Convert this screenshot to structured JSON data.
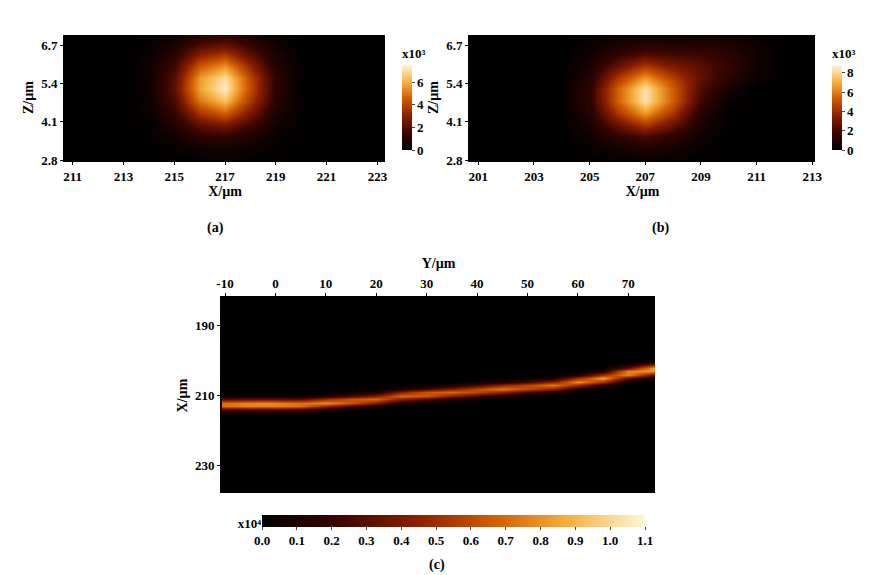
{
  "chart_data": [
    {
      "type": "heatmap",
      "label": "(a)",
      "x_label": "X/µm",
      "y_label": "Z/µm",
      "xlim": [
        210.7,
        223.3
      ],
      "xticks": [
        211,
        213,
        215,
        217,
        219,
        221,
        223
      ],
      "ylim": [
        2.8,
        7.05
      ],
      "yticks": [
        2.8,
        4.1,
        5.4,
        6.7
      ],
      "x": [
        211,
        212,
        213,
        214,
        215,
        216,
        217,
        218,
        219,
        220,
        221,
        222,
        223
      ],
      "y": [
        2.8,
        3.2,
        3.6,
        4.0,
        4.4,
        4.8,
        5.2,
        5.6,
        6.0,
        6.4,
        6.8,
        7.2
      ],
      "z": [
        [
          0,
          0,
          0,
          0,
          0.1,
          0.1,
          0.2,
          0.1,
          0,
          0,
          0,
          0,
          0
        ],
        [
          0,
          0,
          0,
          0,
          0.2,
          0.4,
          0.5,
          0.3,
          0.1,
          0,
          0,
          0,
          0
        ],
        [
          0,
          0,
          0,
          0.1,
          0.4,
          1.1,
          1.3,
          0.8,
          0.2,
          0,
          0,
          0,
          0
        ],
        [
          0,
          0,
          0,
          0.1,
          0.8,
          2.2,
          2.7,
          1.6,
          0.4,
          0.1,
          0,
          0,
          0
        ],
        [
          0,
          0,
          0,
          0.2,
          1.3,
          3.6,
          4.6,
          2.7,
          0.7,
          0.1,
          0,
          0,
          0
        ],
        [
          0,
          0,
          0,
          0.3,
          1.8,
          5.0,
          6.3,
          3.7,
          1.0,
          0.1,
          0,
          0,
          0
        ],
        [
          0,
          0,
          0,
          0.3,
          2.1,
          5.8,
          7.3,
          4.2,
          1.1,
          0.1,
          0,
          0,
          0
        ],
        [
          0,
          0,
          0,
          0.3,
          2.0,
          5.6,
          7.0,
          4.1,
          1.1,
          0.1,
          0,
          0,
          0
        ],
        [
          0,
          0,
          0,
          0.3,
          1.6,
          4.4,
          5.5,
          3.2,
          0.8,
          0.1,
          0,
          0,
          0
        ],
        [
          0,
          0,
          0,
          0.2,
          1.0,
          2.9,
          3.6,
          2.1,
          0.6,
          0.1,
          0,
          0,
          0
        ],
        [
          0,
          0,
          0,
          0.1,
          0.5,
          1.5,
          1.9,
          1.1,
          0.3,
          0,
          0,
          0,
          0
        ],
        [
          0,
          0,
          0,
          0,
          0.3,
          0.7,
          0.9,
          0.5,
          0.1,
          0,
          0,
          0,
          0
        ]
      ],
      "colorbar": {
        "range": [
          0,
          7.5
        ],
        "ticks": [
          0,
          2,
          4,
          6
        ],
        "label": "x10³"
      }
    },
    {
      "type": "heatmap",
      "label": "(b)",
      "x_label": "X/µm",
      "y_label": "Z/µm",
      "xlim": [
        200.7,
        213.1
      ],
      "xticks": [
        201,
        203,
        205,
        207,
        209,
        211,
        213
      ],
      "ylim": [
        2.8,
        7.05
      ],
      "yticks": [
        2.8,
        4.1,
        5.4,
        6.7
      ],
      "x": [
        201,
        202,
        203,
        204,
        205,
        206,
        207,
        208,
        209,
        210,
        211,
        212,
        213
      ],
      "y": [
        2.8,
        3.2,
        3.6,
        4.0,
        4.4,
        4.8,
        5.2,
        5.6,
        6.0,
        6.4,
        6.8,
        7.2
      ],
      "z": [
        [
          0,
          0,
          0,
          0,
          0.1,
          0.2,
          0.3,
          0.2,
          0.1,
          0,
          0,
          0,
          0
        ],
        [
          0,
          0,
          0,
          0,
          0.2,
          0.6,
          0.9,
          0.6,
          0.2,
          0,
          0,
          0,
          0
        ],
        [
          0,
          0,
          0,
          0,
          0.4,
          1.4,
          2.2,
          1.4,
          0.4,
          0,
          0,
          0,
          0
        ],
        [
          0,
          0,
          0,
          0.1,
          0.7,
          2.7,
          4.3,
          2.7,
          0.7,
          0.1,
          0,
          0,
          0
        ],
        [
          0,
          0,
          0,
          0.1,
          1.1,
          4.2,
          6.6,
          4.2,
          1.1,
          0.1,
          0,
          0,
          0
        ],
        [
          0,
          0,
          0,
          0.1,
          1.4,
          5.3,
          8.3,
          5.3,
          1.8,
          0.1,
          0,
          0,
          0
        ],
        [
          0,
          0,
          0,
          0.1,
          1.4,
          5.3,
          8.3,
          5.3,
          2.2,
          0.6,
          0,
          0,
          0
        ],
        [
          0,
          0,
          0,
          0.1,
          1.1,
          4.2,
          6.6,
          4.5,
          2.6,
          1.2,
          0.3,
          0,
          0
        ],
        [
          0,
          0,
          0,
          0.1,
          0.7,
          2.7,
          4.3,
          3.2,
          2.4,
          1.5,
          0.5,
          0,
          0
        ],
        [
          0,
          0,
          0,
          0,
          0.4,
          1.4,
          2.2,
          1.9,
          1.8,
          1.2,
          0.5,
          0,
          0
        ],
        [
          0,
          0,
          0,
          0,
          0.2,
          0.6,
          0.9,
          0.8,
          0.9,
          0.7,
          0.3,
          0,
          0
        ],
        [
          0,
          0,
          0,
          0,
          0.1,
          0.2,
          0.3,
          0.3,
          0.3,
          0.2,
          0.1,
          0,
          0
        ]
      ],
      "colorbar": {
        "range": [
          0,
          8.8
        ],
        "ticks": [
          0,
          2,
          4,
          6,
          8
        ],
        "label": "x10³"
      }
    },
    {
      "type": "heatmap",
      "label": "(c)",
      "x_label": "Y/µm",
      "y_label": "X/µm",
      "xlim": [
        -10.6,
        75.3
      ],
      "xticks": [
        -10,
        0,
        10,
        20,
        30,
        40,
        50,
        60,
        70
      ],
      "ylim": [
        238,
        182
      ],
      "yticks": [
        190,
        210,
        230
      ],
      "x": [
        -10,
        -5,
        0,
        5,
        10,
        15,
        20,
        25,
        30,
        35,
        40,
        45,
        50,
        55,
        60,
        65,
        70,
        75
      ],
      "y": [
        200,
        201,
        202,
        203,
        204,
        205,
        206,
        207,
        208,
        209,
        210,
        211,
        212,
        213,
        214,
        215
      ],
      "z": [
        [
          0,
          0,
          0,
          0,
          0,
          0,
          0,
          0,
          0,
          0,
          0,
          0,
          0,
          0,
          0,
          0,
          0,
          0.05
        ],
        [
          0,
          0,
          0,
          0,
          0,
          0,
          0,
          0,
          0,
          0,
          0,
          0,
          0,
          0,
          0,
          0,
          0.05,
          0.33
        ],
        [
          0,
          0,
          0,
          0,
          0,
          0,
          0,
          0,
          0,
          0,
          0,
          0,
          0,
          0,
          0,
          0,
          0.32,
          0.81
        ],
        [
          0,
          0,
          0,
          0,
          0,
          0,
          0,
          0,
          0,
          0,
          0,
          0,
          0,
          0,
          0,
          0.13,
          0.77,
          0.81
        ],
        [
          0,
          0,
          0,
          0,
          0,
          0,
          0,
          0,
          0,
          0,
          0,
          0,
          0,
          0,
          0.12,
          0.51,
          0.77,
          0.33
        ],
        [
          0,
          0,
          0,
          0,
          0,
          0,
          0,
          0,
          0,
          0,
          0,
          0,
          0.04,
          0.11,
          0.48,
          0.85,
          0.32,
          0.05
        ],
        [
          0,
          0,
          0,
          0,
          0,
          0,
          0,
          0,
          0,
          0,
          0.04,
          0.11,
          0.25,
          0.45,
          0.8,
          0.51,
          0.05,
          0
        ],
        [
          0,
          0,
          0,
          0,
          0,
          0,
          0,
          0,
          0.04,
          0.11,
          0.25,
          0.45,
          0.6,
          0.75,
          0.48,
          0.13,
          0,
          0
        ],
        [
          0,
          0,
          0,
          0,
          0,
          0,
          0,
          0.11,
          0.26,
          0.42,
          0.6,
          0.75,
          0.6,
          0.45,
          0.12,
          0,
          0,
          0
        ],
        [
          0,
          0,
          0,
          0,
          0,
          0.04,
          0.11,
          0.42,
          0.64,
          0.7,
          0.6,
          0.45,
          0.25,
          0.11,
          0,
          0,
          0,
          0
        ],
        [
          0.04,
          0.05,
          0.05,
          0.04,
          0.12,
          0.26,
          0.42,
          0.7,
          0.64,
          0.42,
          0.25,
          0.11,
          0.04,
          0,
          0,
          0,
          0,
          0
        ],
        [
          0.3,
          0.32,
          0.32,
          0.3,
          0.48,
          0.64,
          0.7,
          0.42,
          0.26,
          0.11,
          0.04,
          0,
          0,
          0,
          0,
          0,
          0,
          0
        ],
        [
          0.72,
          0.77,
          0.77,
          0.72,
          0.8,
          0.64,
          0.42,
          0.11,
          0.04,
          0,
          0,
          0,
          0,
          0,
          0,
          0,
          0,
          0
        ],
        [
          0.72,
          0.77,
          0.77,
          0.72,
          0.48,
          0.26,
          0.11,
          0,
          0,
          0,
          0,
          0,
          0,
          0,
          0,
          0,
          0,
          0
        ],
        [
          0.3,
          0.32,
          0.32,
          0.3,
          0.12,
          0.04,
          0,
          0,
          0,
          0,
          0,
          0,
          0,
          0,
          0,
          0,
          0,
          0
        ],
        [
          0.04,
          0.05,
          0.05,
          0.04,
          0,
          0,
          0,
          0,
          0,
          0,
          0,
          0,
          0,
          0,
          0,
          0,
          0,
          0
        ]
      ],
      "colorbar": {
        "range": [
          0,
          1.1
        ],
        "ticks": [
          {
            "value": 0,
            "label": "0.0"
          },
          {
            "value": 0.1,
            "label": "0.1"
          },
          {
            "value": 0.2,
            "label": "0.2"
          },
          {
            "value": 0.3,
            "label": "0.3"
          },
          {
            "value": 0.4,
            "label": "0.4"
          },
          {
            "value": 0.5,
            "label": "0.5"
          },
          {
            "value": 0.6,
            "label": "0.6"
          },
          {
            "value": 0.7,
            "label": "0.7"
          },
          {
            "value": 0.8,
            "label": "0.8"
          },
          {
            "value": 0.9,
            "label": "0.9"
          },
          {
            "value": 1.0,
            "label": "1.0"
          },
          {
            "value": 1.1,
            "label": "1.1"
          }
        ],
        "label": "x10⁴"
      }
    }
  ]
}
